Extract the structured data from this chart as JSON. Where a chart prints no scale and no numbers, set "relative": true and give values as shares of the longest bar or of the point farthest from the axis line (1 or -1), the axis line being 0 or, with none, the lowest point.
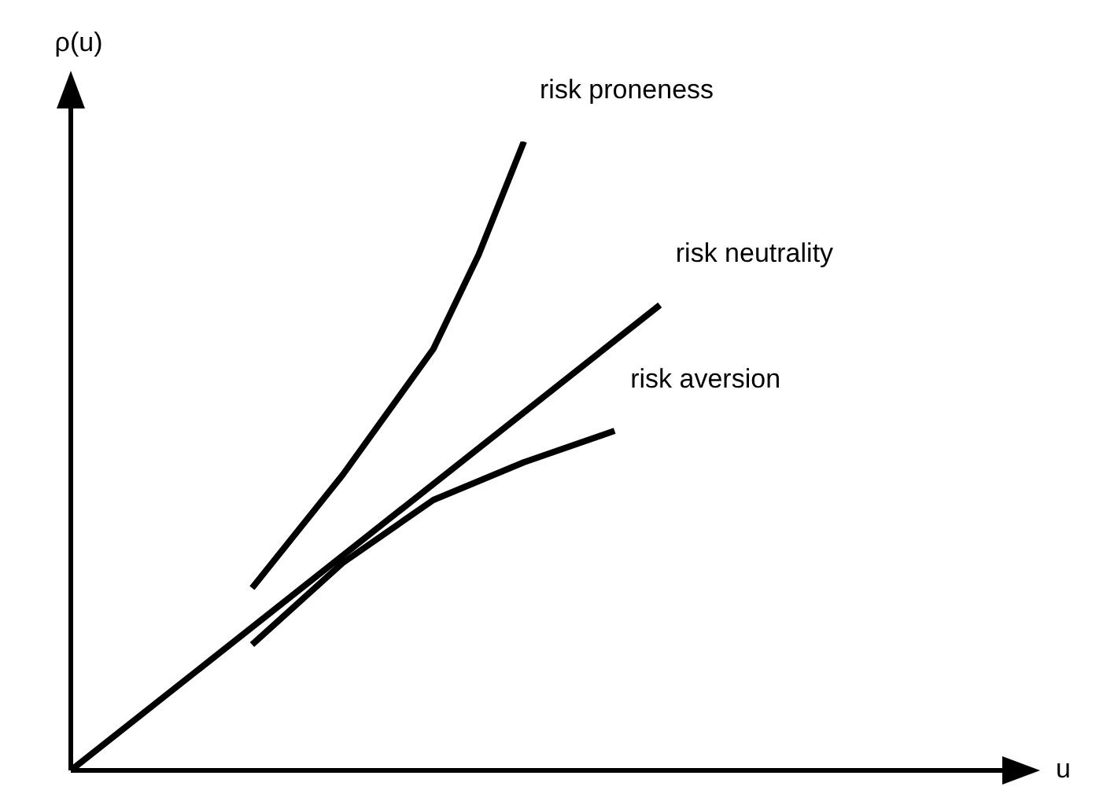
{
  "chart_data": {
    "type": "line",
    "relative": true,
    "xlabel": "u",
    "ylabel": "ρ(u)",
    "marker": "none",
    "line_style": "solid",
    "categories": [
      null,
      null,
      null,
      null,
      null,
      null,
      null,
      null,
      null,
      null,
      null,
      null,
      null,
      null,
      null,
      null,
      null,
      null,
      null,
      null,
      null
    ],
    "series": [
      {
        "name": "risk proneness",
        "color": "#000000",
        "values": [
          null,
          null,
          null,
          null,
          0.29,
          null,
          0.47,
          null,
          0.67,
          0.82,
          1,
          null,
          null,
          null,
          null,
          null,
          null,
          null,
          null,
          null,
          null
        ]
      },
      {
        "name": "risk neutrality",
        "color": "#000000",
        "values": [
          0,
          null,
          null,
          null,
          null,
          null,
          null,
          null,
          null,
          null,
          null,
          null,
          null,
          0.74,
          null,
          null,
          null,
          null,
          null,
          null,
          null
        ]
      },
      {
        "name": "risk aversion",
        "color": "#000000",
        "values": [
          null,
          null,
          null,
          null,
          0.2,
          null,
          0.33,
          null,
          0.43,
          null,
          0.49,
          null,
          0.54,
          null,
          null,
          null,
          null,
          null,
          null,
          null,
          null
        ]
      }
    ]
  }
}
